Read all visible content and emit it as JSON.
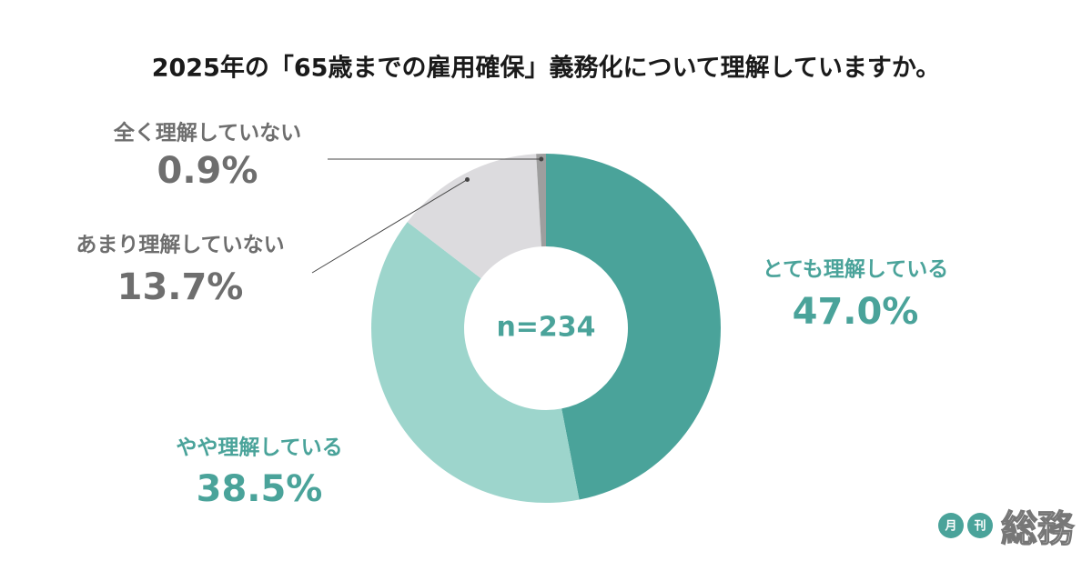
{
  "chart_data": {
    "type": "donut",
    "title": "2025年の「65歳までの雇用確保」義務化について理解していますか。",
    "center_label": "n=234",
    "categories": [
      "とても理解している",
      "やや理解している",
      "あまり理解していない",
      "全く理解していない"
    ],
    "values": [
      47.0,
      38.5,
      13.7,
      0.9
    ],
    "value_labels": [
      "47.0%",
      "38.5%",
      "13.7%",
      "0.9%"
    ],
    "colors": [
      "#4aa39a",
      "#9dd5cc",
      "#dcdbde",
      "#9e9e9e"
    ],
    "label_colors": [
      "#4aa39a",
      "#4aa39a",
      "#6e6e6e",
      "#6e6e6e"
    ]
  },
  "logo": {
    "badge": [
      "月",
      "刊"
    ],
    "name": "総務"
  }
}
